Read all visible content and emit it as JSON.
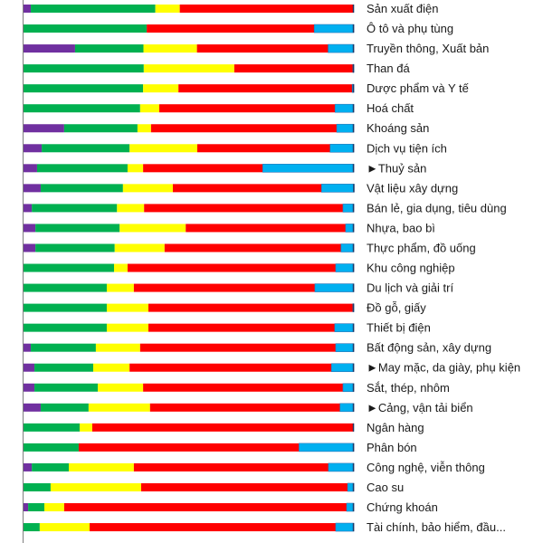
{
  "chart_data": {
    "type": "bar",
    "orientation": "horizontal",
    "stacked": true,
    "title": "",
    "xlabel": "",
    "ylabel": "",
    "xlim": [
      0,
      100
    ],
    "grid": false,
    "legend": "none",
    "categories": [
      "Sản xuất điện",
      "Ô tô và phụ tùng",
      "Truyền thông, Xuất bản",
      "Than đá",
      "Dược phẩm và Y tế",
      "Hoá chất",
      "Khoáng sản",
      "Dịch vụ tiện ích",
      "►Thuỷ sản",
      "Vật liệu xây dựng",
      "Bán lẻ, gia dụng, tiêu dùng",
      "Nhựa, bao bì",
      "Thực phẩm, đồ uống",
      "Khu công nghiệp",
      "Du lịch và giải trí",
      "Đồ gỗ, giấy",
      "Thiết bị điện",
      "Bất động sản, xây dựng",
      "►May mặc, da giày, phụ kiện",
      "Sắt, thép, nhôm",
      "►Cảng, vận tải biển",
      "Ngân hàng",
      "Phân bón",
      "Công nghệ, viễn thông",
      "Cao su",
      "Chứng khoán",
      "Tài chính, bảo hiểm, đầu..."
    ],
    "series": [
      {
        "color": "#7030a0",
        "values": [
          2.2,
          0,
          15.6,
          0,
          0,
          0,
          12.3,
          5.5,
          4.1,
          5.2,
          2.5,
          3.6,
          3.6,
          0,
          0,
          0,
          0,
          2.2,
          3.3,
          3.3,
          5.2,
          0,
          0,
          2.5,
          0,
          1.4,
          0
        ]
      },
      {
        "color": "#00b050",
        "values": [
          37.7,
          37.3,
          20.7,
          36.4,
          36.2,
          35.3,
          22.2,
          26.6,
          27.4,
          24.9,
          25.8,
          25.5,
          24.0,
          27.4,
          25.2,
          25.2,
          25.2,
          19.7,
          17.8,
          19.2,
          14.5,
          17.0,
          16.7,
          11.2,
          8.2,
          4.9,
          4.9
        ]
      },
      {
        "color": "#ffff00",
        "values": [
          7.4,
          0,
          16.2,
          27.4,
          10.7,
          5.8,
          4.1,
          20.5,
          4.7,
          15.1,
          8.2,
          20.0,
          15.1,
          4.1,
          8.2,
          12.6,
          12.6,
          13.4,
          11.0,
          13.7,
          18.6,
          3.8,
          0,
          19.7,
          27.4,
          6.0,
          15.1
        ]
      },
      {
        "color": "#ff0000",
        "values": [
          52.7,
          50.7,
          39.7,
          35.9,
          52.6,
          53.2,
          56.2,
          40.2,
          36.2,
          45.0,
          60.2,
          48.4,
          53.4,
          63.0,
          54.8,
          61.9,
          56.4,
          59.2,
          61.1,
          60.5,
          57.5,
          79.2,
          66.7,
          58.9,
          62.5,
          85.5,
          74.5
        ]
      },
      {
        "color": "#00b0f0",
        "values": [
          0,
          12.0,
          7.8,
          0.3,
          0.5,
          5.7,
          5.2,
          7.2,
          27.6,
          9.9,
          3.3,
          2.5,
          3.9,
          5.5,
          11.8,
          0.3,
          5.8,
          5.5,
          6.8,
          3.3,
          4.2,
          0,
          16.6,
          7.7,
          1.9,
          2.2,
          5.5
        ]
      }
    ]
  }
}
